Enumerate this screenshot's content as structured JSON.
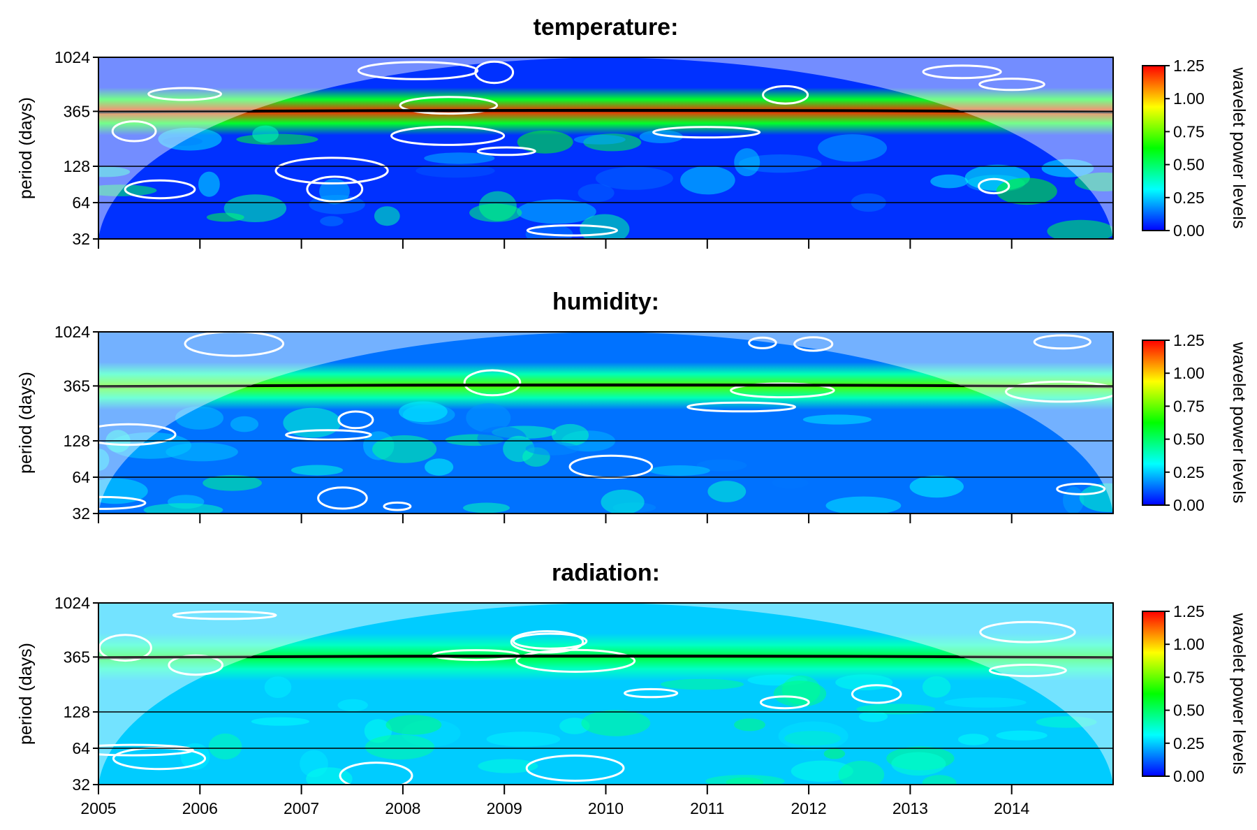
{
  "chart_data": [
    {
      "type": "heatmap",
      "title": "temperature:",
      "ylabel": "period (days)",
      "y_scale": "log2",
      "yticks": [
        "32",
        "64",
        "128",
        "365",
        "1024"
      ],
      "y_tick_values": [
        32,
        64,
        128,
        365,
        1024
      ],
      "reference_lines": [
        64,
        128,
        365
      ],
      "xlim": [
        2005,
        2015
      ],
      "x_tick_values": [
        2005,
        2006,
        2007,
        2008,
        2009,
        2010,
        2011,
        2012,
        2013,
        2014
      ],
      "xticks_labeled": false,
      "ylim": [
        32,
        1024
      ],
      "dominant_period_days": 365,
      "colorbar": {
        "label": "wavelet power levels",
        "ticks": [
          "0.00",
          "0.25",
          "0.50",
          "0.75",
          "1.00",
          "1.25"
        ],
        "range": [
          0,
          1.25
        ]
      },
      "ridge_max_power": 1.2,
      "background_power": 0.06
    },
    {
      "type": "heatmap",
      "title": "humidity:",
      "ylabel": "period (days)",
      "y_scale": "log2",
      "yticks": [
        "32",
        "64",
        "128",
        "365",
        "1024"
      ],
      "y_tick_values": [
        32,
        64,
        128,
        365,
        1024
      ],
      "reference_lines": [
        64,
        128,
        365
      ],
      "xlim": [
        2005,
        2015
      ],
      "x_tick_values": [
        2005,
        2006,
        2007,
        2008,
        2009,
        2010,
        2011,
        2012,
        2013,
        2014
      ],
      "xticks_labeled": false,
      "ylim": [
        32,
        1024
      ],
      "dominant_period_days": 365,
      "colorbar": {
        "label": "wavelet power levels",
        "ticks": [
          "0.00",
          "0.25",
          "0.50",
          "0.75",
          "1.00",
          "1.25"
        ],
        "range": [
          0,
          1.25
        ]
      },
      "ridge_max_power": 0.72,
      "background_power": 0.14
    },
    {
      "type": "heatmap",
      "title": "radiation:",
      "ylabel": "period (days)",
      "y_scale": "log2",
      "yticks": [
        "32",
        "64",
        "128",
        "365",
        "1024"
      ],
      "y_tick_values": [
        32,
        64,
        128,
        365,
        1024
      ],
      "reference_lines": [
        64,
        128,
        365
      ],
      "xlim": [
        2005,
        2015
      ],
      "x_tick_values": [
        2005,
        2006,
        2007,
        2008,
        2009,
        2010,
        2011,
        2012,
        2013,
        2014
      ],
      "xticks": [
        "2005",
        "2006",
        "2007",
        "2008",
        "2009",
        "2010",
        "2011",
        "2012",
        "2013",
        "2014"
      ],
      "xticks_labeled": true,
      "ylim": [
        32,
        1024
      ],
      "dominant_period_days": 365,
      "colorbar": {
        "label": "wavelet power levels",
        "ticks": [
          "0.00",
          "0.25",
          "0.50",
          "0.75",
          "1.00",
          "1.25"
        ],
        "range": [
          0,
          1.25
        ]
      },
      "ridge_max_power": 0.55,
      "background_power": 0.25
    }
  ],
  "colors": {
    "palette": [
      "#0000ff",
      "#00ffff",
      "#00ff00",
      "#ffff00",
      "#ff0000"
    ],
    "contour_significance": "#ffffff",
    "ridge": "#000000",
    "cone_of_influence_shade": "#ffffff"
  }
}
